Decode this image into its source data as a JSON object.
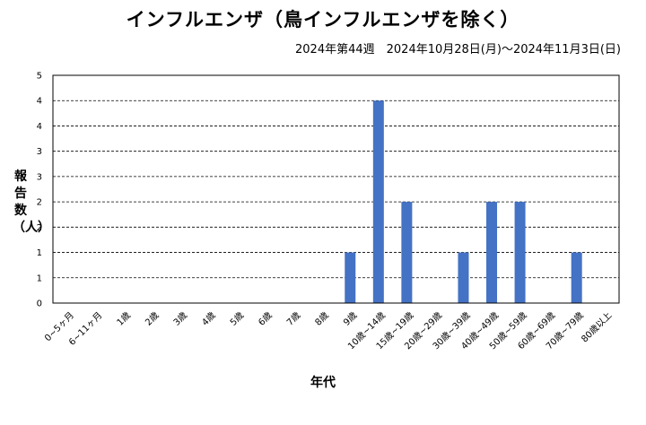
{
  "chart_data": {
    "type": "bar",
    "title": "インフルエンザ（鳥インフルエンザを除く）",
    "subtitle": "2024年第44週　2024年10月28日(月)～2024年11月3日(日)",
    "xlabel": "年代",
    "ylabel": "報告数（人）",
    "categories": [
      "0~5ヶ月",
      "6~11ヶ月",
      "1歳",
      "2歳",
      "3歳",
      "4歳",
      "5歳",
      "6歳",
      "7歳",
      "8歳",
      "9歳",
      "10歳~14歳",
      "15歳~19歳",
      "20歳~29歳",
      "30歳~39歳",
      "40歳~49歳",
      "50歳~59歳",
      "60歳~69歳",
      "70歳~79歳",
      "80歳以上"
    ],
    "values": [
      0,
      0,
      0,
      0,
      0,
      0,
      0,
      0,
      0,
      0,
      1,
      4,
      2,
      0,
      1,
      2,
      2,
      0,
      1,
      0
    ],
    "ylim": [
      0,
      4.5
    ],
    "yticks": [
      0,
      0.5,
      1,
      1.5,
      2,
      2.5,
      3,
      3.5,
      4,
      4.5
    ],
    "ytick_labels": [
      "0",
      "1",
      "1",
      "2",
      "2",
      "3",
      "3",
      "4",
      "4",
      "5"
    ],
    "grid": true,
    "bar_color": "#4472c4"
  }
}
